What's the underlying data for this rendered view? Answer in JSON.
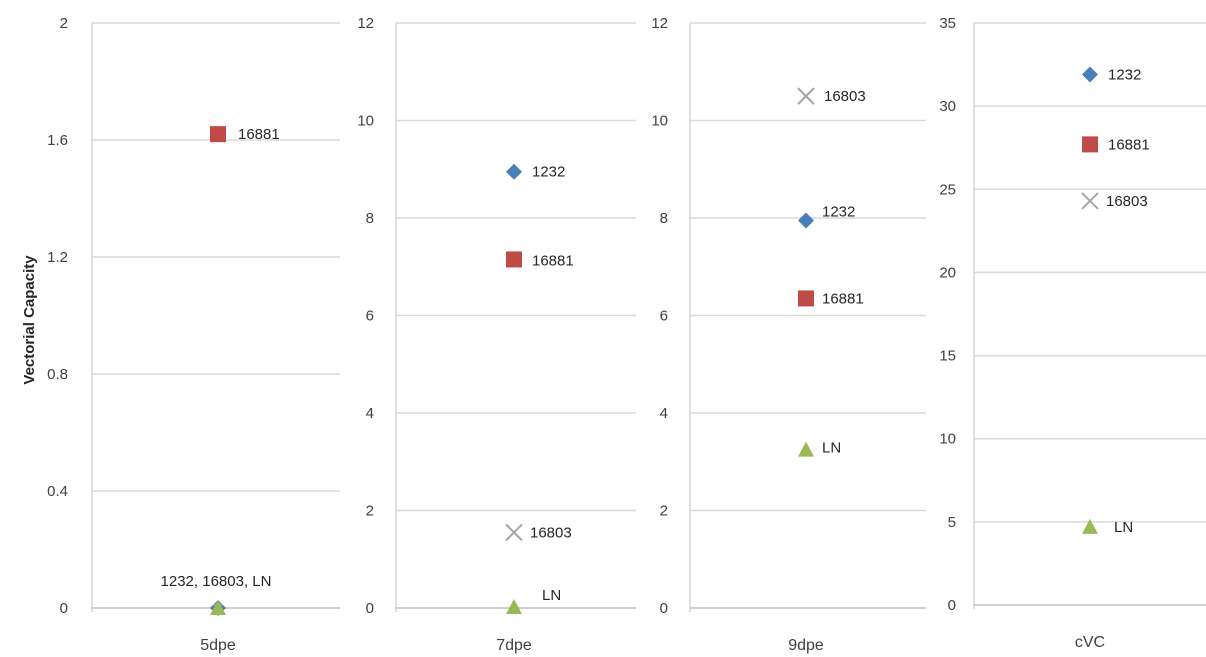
{
  "figure": {
    "ylabel": "Vectorial Capacity"
  },
  "chart_data": [
    {
      "type": "scatter",
      "title": "",
      "xlabel": "5dpe",
      "ylabel": "Vectorial Capacity",
      "ylim": [
        0,
        2
      ],
      "yticks": [
        0,
        0.4,
        0.8,
        1.2,
        1.6,
        2
      ],
      "grid": true,
      "points": [
        {
          "series": "16881",
          "y": 1.62,
          "label": "16881"
        },
        {
          "series": "1232",
          "y": 0,
          "label": ""
        },
        {
          "series": "16803",
          "y": 0,
          "label": "1232, 16803, LN"
        },
        {
          "series": "LN",
          "y": 0,
          "label": ""
        }
      ]
    },
    {
      "type": "scatter",
      "title": "",
      "xlabel": "7dpe",
      "ylabel": "",
      "ylim": [
        0,
        12
      ],
      "yticks": [
        0,
        2,
        4,
        6,
        8,
        10,
        12
      ],
      "grid": true,
      "points": [
        {
          "series": "1232",
          "y": 8.95,
          "label": "1232"
        },
        {
          "series": "16881",
          "y": 7.15,
          "label": "16881"
        },
        {
          "series": "16803",
          "y": 1.55,
          "label": "16803"
        },
        {
          "series": "LN",
          "y": 0.02,
          "label": "LN"
        }
      ]
    },
    {
      "type": "scatter",
      "title": "",
      "xlabel": "9dpe",
      "ylabel": "",
      "ylim": [
        0,
        12
      ],
      "yticks": [
        0,
        2,
        4,
        6,
        8,
        10,
        12
      ],
      "grid": true,
      "points": [
        {
          "series": "16803",
          "y": 10.5,
          "label": "16803"
        },
        {
          "series": "1232",
          "y": 7.95,
          "label": "1232"
        },
        {
          "series": "16881",
          "y": 6.35,
          "label": "16881"
        },
        {
          "series": "LN",
          "y": 3.25,
          "label": "LN"
        }
      ]
    },
    {
      "type": "scatter",
      "title": "",
      "xlabel": "cVC",
      "ylabel": "",
      "ylim": [
        0,
        35
      ],
      "yticks": [
        0,
        5,
        10,
        15,
        20,
        25,
        30,
        35
      ],
      "grid": true,
      "points": [
        {
          "series": "1232",
          "y": 31.9,
          "label": "1232"
        },
        {
          "series": "16881",
          "y": 27.7,
          "label": "16881"
        },
        {
          "series": "16803",
          "y": 24.3,
          "label": "16803"
        },
        {
          "series": "LN",
          "y": 4.7,
          "label": "LN"
        }
      ]
    }
  ],
  "series_style": {
    "1232": {
      "marker": "diamond",
      "color": "#4a7ebb"
    },
    "16881": {
      "marker": "square",
      "color": "#be4b48"
    },
    "16803": {
      "marker": "x",
      "color": "#a6a6a6"
    },
    "LN": {
      "marker": "triangle",
      "color": "#98b954"
    }
  },
  "colors": {
    "grid": "#d9d9d9",
    "axis": "#bfbfbf",
    "text": "#404040"
  }
}
